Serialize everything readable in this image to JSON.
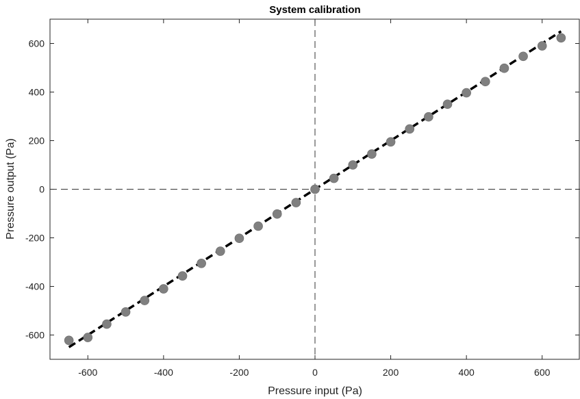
{
  "chart_data": {
    "type": "scatter",
    "title": "System calibration",
    "xlabel": "Pressure input (Pa)",
    "ylabel": "Pressure output (Pa)",
    "xlim": [
      -700,
      700
    ],
    "ylim": [
      -700,
      700
    ],
    "xticks": [
      -600,
      -400,
      -200,
      0,
      200,
      400,
      600
    ],
    "yticks": [
      -600,
      -400,
      -200,
      0,
      200,
      400,
      600
    ],
    "grid": false,
    "zero_lines": true,
    "series": [
      {
        "kind": "scatter",
        "color": "#808080",
        "x": [
          -650,
          -600,
          -550,
          -500,
          -450,
          -400,
          -350,
          -300,
          -250,
          -200,
          -150,
          -100,
          -50,
          0,
          50,
          100,
          150,
          200,
          250,
          300,
          350,
          400,
          450,
          500,
          550,
          600,
          650
        ],
        "y": [
          -622,
          -610,
          -555,
          -505,
          -458,
          -410,
          -357,
          -305,
          -255,
          -202,
          -152,
          -102,
          -55,
          0,
          45,
          100,
          145,
          195,
          248,
          298,
          350,
          397,
          443,
          498,
          547,
          590,
          623
        ]
      },
      {
        "kind": "line",
        "style": "dashed",
        "color": "#000000",
        "x": [
          -650,
          650
        ],
        "y": [
          -650,
          650
        ]
      }
    ]
  }
}
